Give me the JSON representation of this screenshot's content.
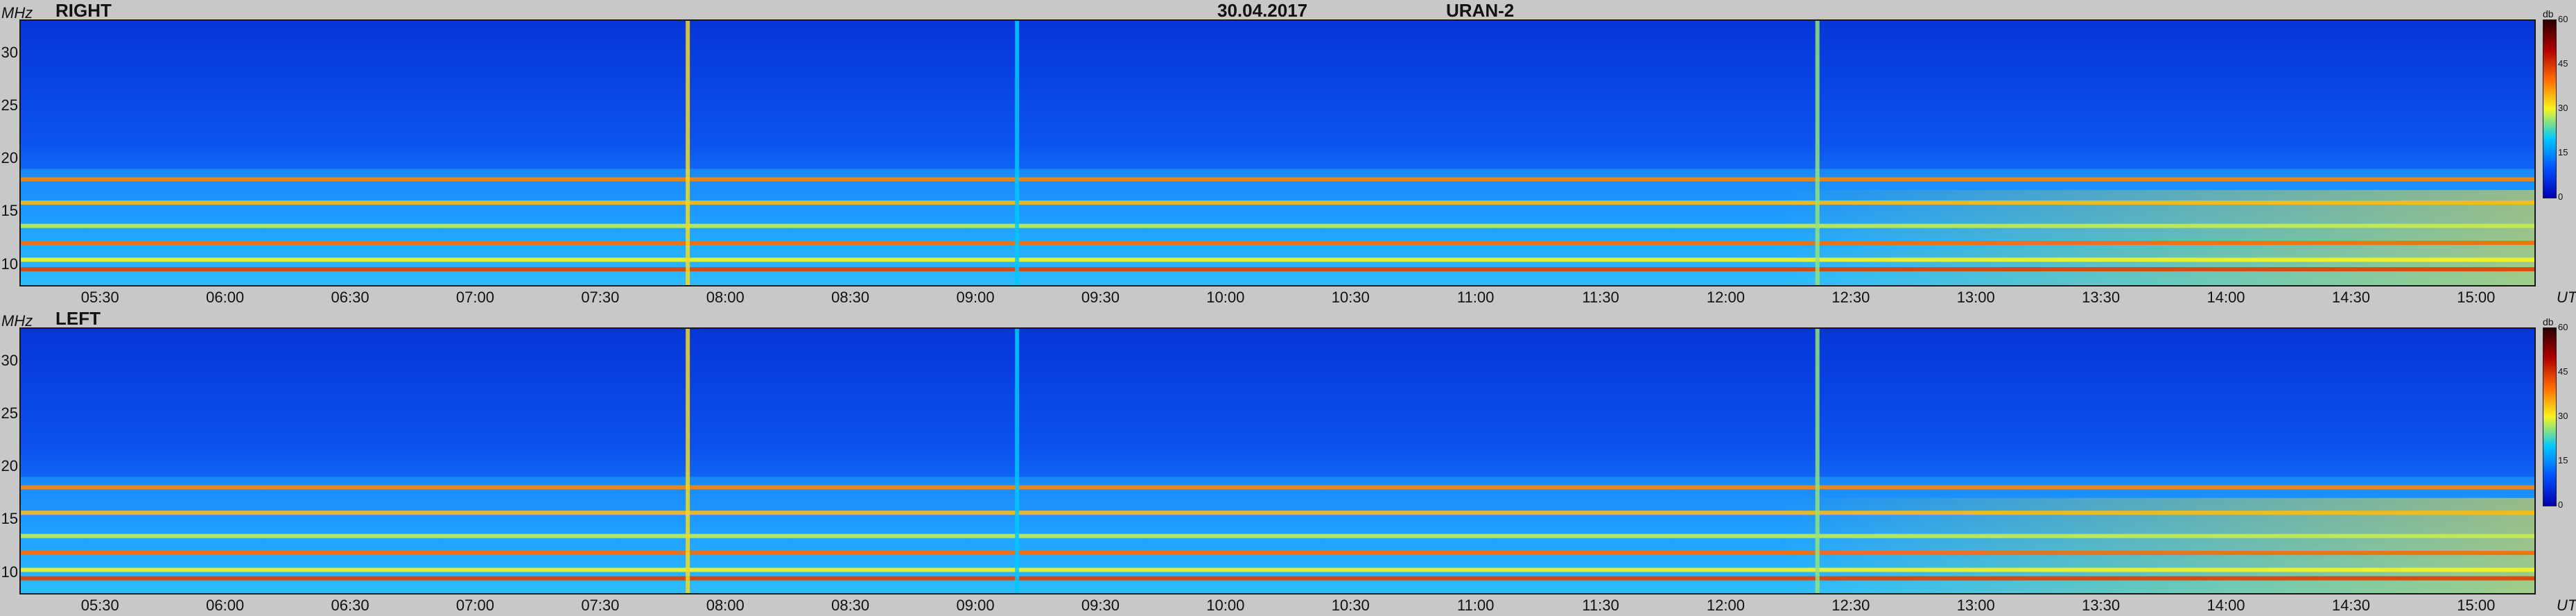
{
  "header": {
    "date": "30.04.2017",
    "station": "URAN-2"
  },
  "colors": {
    "background": "#c8c8c8",
    "base": "#0b4fe0",
    "colormap": [
      "#0000b0",
      "#0050ff",
      "#00c8ff",
      "#f5f520",
      "#ff6a00",
      "#b00000",
      "#2a0000"
    ]
  },
  "chart_data": [
    {
      "type": "heatmap",
      "title": "RIGHT",
      "ylabel": "MHz",
      "xlabel": "UT",
      "ylim": [
        8,
        33
      ],
      "xlim": [
        "05:11",
        "15:14"
      ],
      "yticks": [
        "30",
        "25",
        "20",
        "15",
        "10"
      ],
      "xticks": [
        "05:30",
        "06:00",
        "06:30",
        "07:00",
        "07:30",
        "08:00",
        "08:30",
        "09:00",
        "09:30",
        "10:00",
        "10:30",
        "11:00",
        "11:30",
        "12:00",
        "12:30",
        "13:00",
        "13:30",
        "14:00",
        "14:30",
        "15:00"
      ],
      "colorbar": {
        "unit": "db",
        "ticks": [
          "60",
          "45",
          "30",
          "15",
          "0"
        ],
        "range": [
          0,
          60
        ]
      },
      "bands": [
        {
          "freq_mhz": 18.0,
          "level_db": 38
        },
        {
          "freq_mhz": 15.8,
          "level_db": 34
        },
        {
          "freq_mhz": 13.6,
          "level_db": 28
        },
        {
          "freq_mhz": 12.0,
          "level_db": 40
        },
        {
          "freq_mhz": 10.4,
          "level_db": 30
        },
        {
          "freq_mhz": 9.5,
          "level_db": 44
        }
      ],
      "bursts": [
        {
          "time": "07:51",
          "level_db": 32
        },
        {
          "time": "12:22",
          "level_db": 26
        },
        {
          "time": "09:10",
          "level_db": 20
        }
      ]
    },
    {
      "type": "heatmap",
      "title": "LEFT",
      "ylabel": "MHz",
      "xlabel": "UT",
      "ylim": [
        8,
        33
      ],
      "xlim": [
        "05:11",
        "15:14"
      ],
      "yticks": [
        "30",
        "25",
        "20",
        "15",
        "10"
      ],
      "xticks": [
        "05:30",
        "06:00",
        "06:30",
        "07:00",
        "07:30",
        "08:00",
        "08:30",
        "09:00",
        "09:30",
        "10:00",
        "10:30",
        "11:00",
        "11:30",
        "12:00",
        "12:30",
        "13:00",
        "13:30",
        "14:00",
        "14:30",
        "15:00"
      ],
      "colorbar": {
        "unit": "db",
        "ticks": [
          "60",
          "45",
          "30",
          "15",
          "0"
        ],
        "range": [
          0,
          60
        ]
      },
      "bands": [
        {
          "freq_mhz": 18.0,
          "level_db": 38
        },
        {
          "freq_mhz": 15.6,
          "level_db": 34
        },
        {
          "freq_mhz": 13.4,
          "level_db": 28
        },
        {
          "freq_mhz": 11.8,
          "level_db": 40
        },
        {
          "freq_mhz": 10.2,
          "level_db": 30
        },
        {
          "freq_mhz": 9.4,
          "level_db": 44
        }
      ],
      "bursts": [
        {
          "time": "07:51",
          "level_db": 32
        },
        {
          "time": "12:22",
          "level_db": 26
        },
        {
          "time": "09:10",
          "level_db": 20
        }
      ]
    }
  ]
}
